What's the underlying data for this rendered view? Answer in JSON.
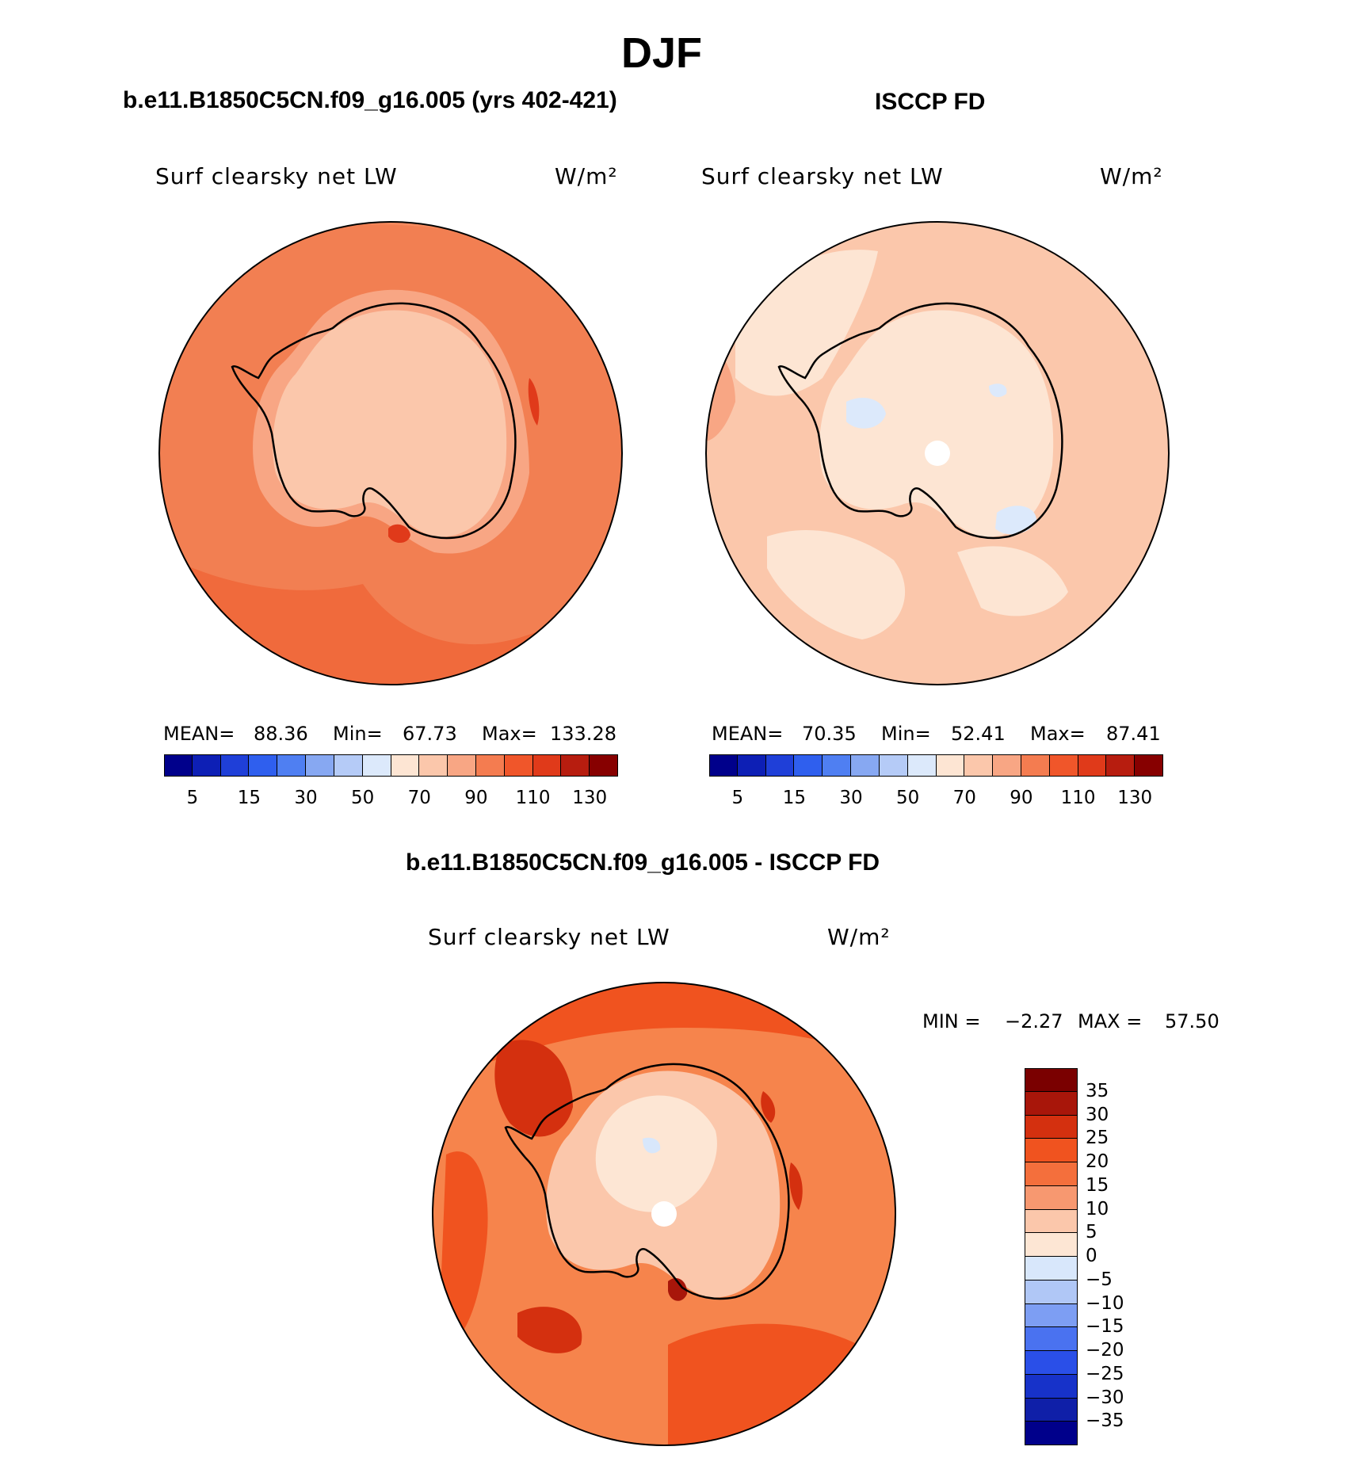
{
  "title": "DJF",
  "units": "W/m²",
  "colors": {
    "abs_scale": [
      "#00008b",
      "#0d1fb5",
      "#1f3fd8",
      "#2f5fee",
      "#4f7ff2",
      "#87a8f2",
      "#b5cbf7",
      "#dce9fb",
      "#fde5d3",
      "#fbc7ab",
      "#f8a684",
      "#f47c50",
      "#f0562a",
      "#e03a1a",
      "#b71d0f",
      "#870000"
    ],
    "diff_scale": [
      "#00008b",
      "#0f1fa8",
      "#1732c9",
      "#2a4fe8",
      "#4a72f0",
      "#7d9ef3",
      "#b0c7f6",
      "#d8e7fb",
      "#fde6d4",
      "#fbc7ab",
      "#f79870",
      "#f46f3c",
      "#f0531f",
      "#d4300f",
      "#a8160a",
      "#7a0000"
    ]
  },
  "panels": [
    {
      "id": "model",
      "title": "b.e11.B1850C5CN.f09_g16.005 (yrs 402-421)",
      "variable": "Surf clearsky net LW",
      "units": "W/m²",
      "stats": {
        "mean_label": "MEAN=",
        "mean": "88.36",
        "min_label": "Min=",
        "min": "67.73",
        "max_label": "Max=",
        "max": "133.28"
      },
      "colorbar_ticks": [
        "5",
        "15",
        "30",
        "50",
        "70",
        "90",
        "110",
        "130"
      ]
    },
    {
      "id": "obs",
      "title": "ISCCP FD",
      "variable": "Surf clearsky net LW",
      "units": "W/m²",
      "stats": {
        "mean_label": "MEAN=",
        "mean": "70.35",
        "min_label": "Min=",
        "min": "52.41",
        "max_label": "Max=",
        "max": "87.41"
      },
      "colorbar_ticks": [
        "5",
        "15",
        "30",
        "50",
        "70",
        "90",
        "110",
        "130"
      ]
    },
    {
      "id": "diff",
      "title": "b.e11.B1850C5CN.f09_g16.005 - ISCCP FD",
      "variable": "Surf clearsky net LW",
      "units": "W/m²",
      "stats": {
        "min_label": "MIN =",
        "min": "−2.27",
        "max_label": "MAX =",
        "max": "57.50"
      },
      "colorbar_ticks": [
        "35",
        "30",
        "25",
        "20",
        "15",
        "10",
        "5",
        "0",
        "−5",
        "−10",
        "−15",
        "−20",
        "−25",
        "−30",
        "−35"
      ]
    }
  ]
}
